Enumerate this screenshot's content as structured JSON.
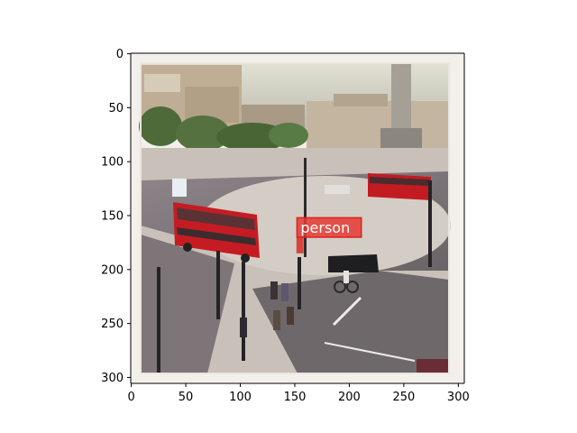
{
  "chart_data": {
    "type": "image",
    "title": "",
    "xlabel": "",
    "ylabel": "",
    "image_extent": {
      "x": [
        0,
        305
      ],
      "y": [
        0,
        305
      ]
    },
    "xlim": [
      -0.5,
      305.5
    ],
    "ylim": [
      305.5,
      -0.5
    ],
    "y_inverted": true,
    "xticks": [
      0,
      50,
      100,
      150,
      200,
      250,
      300
    ],
    "yticks": [
      0,
      50,
      100,
      150,
      200,
      250,
      300
    ],
    "grid": false,
    "annotations": [
      {
        "label": "person",
        "bbox": {
          "x0": 152,
          "y0": 152,
          "x1": 211,
          "y1": 170
        },
        "color": "#d9221c",
        "label_bg": "#e53a32"
      }
    ],
    "scene": {
      "description_colors": {
        "sky": "#cfcfc2",
        "buildings": "#bdae97",
        "trees": "#4f6a3a",
        "road": "#7b7478",
        "pavement": "#c8c2bb",
        "bus_red": "#c91b22",
        "border": "#f3f0ec"
      }
    }
  }
}
